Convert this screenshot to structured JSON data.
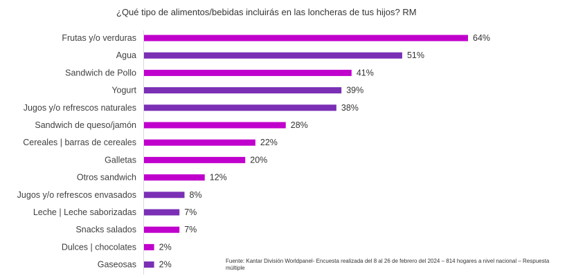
{
  "chart_data": {
    "type": "bar",
    "orientation": "horizontal",
    "title": "¿Qué tipo de alimentos/bebidas incluirás en las loncheras de tus hijos? RM",
    "categories": [
      "Frutas y/o verduras",
      "Agua",
      "Sandwich de Pollo",
      "Yogurt",
      "Jugos y/o refrescos naturales",
      "Sandwich de queso/jamón",
      "Cereales | barras de cereales",
      "Galletas",
      "Otros sandwich",
      "Jugos y/o refrescos envasados",
      "Leche | Leche saborizadas",
      "Snacks salados",
      "Dulces | chocolates",
      "Gaseosas"
    ],
    "values": [
      64,
      51,
      41,
      39,
      38,
      28,
      22,
      20,
      12,
      8,
      7,
      7,
      2,
      2
    ],
    "value_labels": [
      "64%",
      "51%",
      "41%",
      "39%",
      "38%",
      "28%",
      "22%",
      "20%",
      "12%",
      "8%",
      "7%",
      "7%",
      "2%",
      "2%"
    ],
    "bar_colors": [
      "#c000cc",
      "#7a2fb5",
      "#c000cc",
      "#7a2fb5",
      "#7a2fb5",
      "#c000cc",
      "#c000cc",
      "#c000cc",
      "#c000cc",
      "#7a2fb5",
      "#7a2fb5",
      "#c000cc",
      "#c000cc",
      "#7a2fb5"
    ],
    "xlim": [
      0,
      70
    ],
    "xlabel": "",
    "ylabel": "",
    "grid": false,
    "legend": false
  },
  "source_note": "Fuente: Kantar División Worldpanel- Encuesta realizada del 8  al  26 de febrero del 2024 – 814 hogares a nivel nacional – Respuesta múltiple"
}
